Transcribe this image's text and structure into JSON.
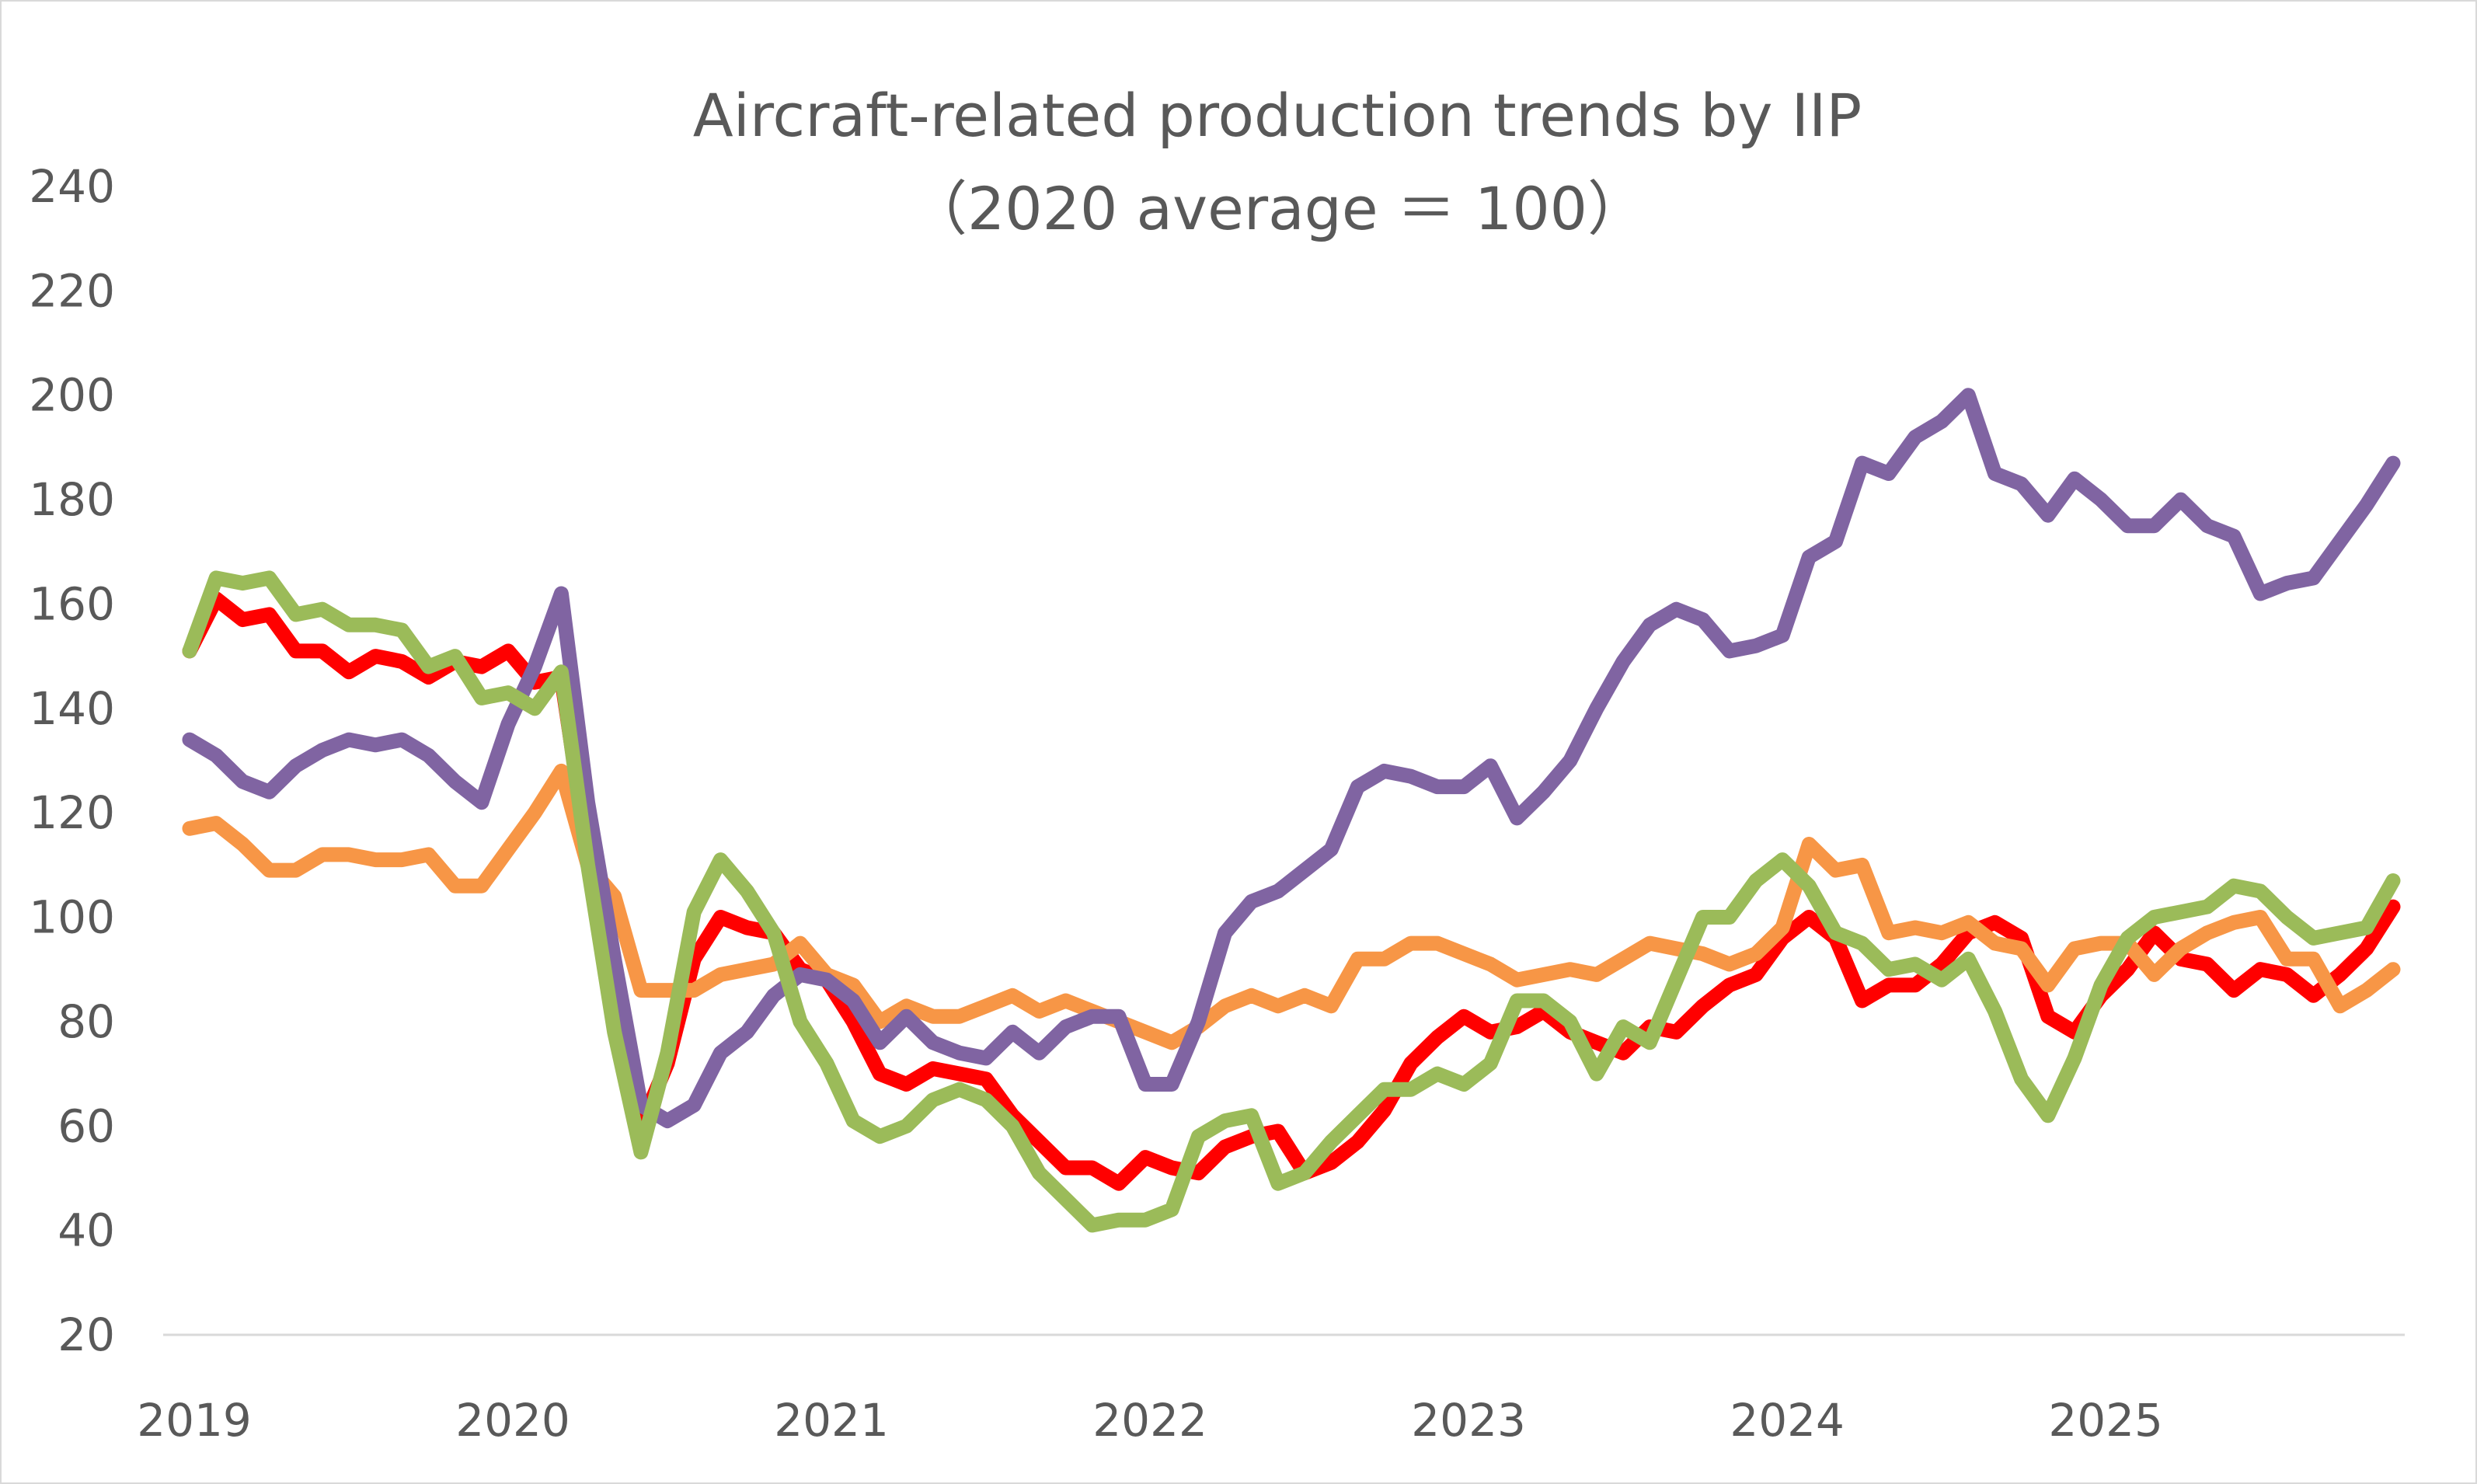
{
  "chart_data": {
    "type": "line",
    "title": "Aircraft-related production trends by IIP",
    "subtitle": "（2020 average ＝ 100）",
    "xlabel": "",
    "ylabel": "",
    "ylim": [
      20,
      240
    ],
    "y_ticks": [
      "20",
      "40",
      "60",
      "80",
      "100",
      "120",
      "140",
      "160",
      "180",
      "200",
      "220",
      "240"
    ],
    "x_tick_labels": [
      "2019",
      "2020",
      "2021",
      "2022",
      "2023",
      "2024",
      "2025"
    ],
    "x_range": [
      "2019-01",
      "2025-12"
    ],
    "x_frequency": "monthly",
    "grid": false,
    "legend": "none",
    "series": [
      {
        "color": "#FF0000",
        "values": [
          151,
          161,
          157,
          158,
          151,
          151,
          147,
          150,
          149,
          146,
          149,
          148,
          151,
          145,
          146,
          112,
          80,
          60,
          72,
          92,
          100,
          98,
          97,
          90,
          88,
          80,
          70,
          68,
          71,
          70,
          69,
          62,
          57,
          52,
          52,
          49,
          54,
          52,
          51,
          56,
          58,
          59,
          51,
          53,
          57,
          63,
          72,
          77,
          81,
          78,
          79,
          82,
          78,
          76,
          74,
          79,
          78,
          83,
          87,
          89,
          96,
          100,
          96,
          84,
          87,
          87,
          91,
          97,
          99,
          96,
          81,
          78,
          85,
          90,
          97,
          92,
          91,
          86,
          90,
          89,
          85,
          89,
          94,
          102
        ]
      },
      {
        "color": "#F79646",
        "values": [
          117,
          118,
          114,
          109,
          109,
          112,
          112,
          111,
          111,
          112,
          106,
          106,
          113,
          120,
          128,
          110,
          104,
          86,
          86,
          86,
          89,
          90,
          91,
          95,
          89,
          87,
          80,
          83,
          81,
          81,
          83,
          85,
          82,
          84,
          82,
          80,
          78,
          76,
          79,
          83,
          85,
          83,
          85,
          83,
          92,
          92,
          95,
          95,
          93,
          91,
          88,
          89,
          90,
          89,
          92,
          95,
          94,
          93,
          91,
          93,
          98,
          114,
          109,
          110,
          97,
          98,
          97,
          99,
          95,
          94,
          87,
          94,
          95,
          95,
          89,
          94,
          97,
          99,
          100,
          92,
          92,
          83,
          86,
          90
        ]
      },
      {
        "color": "#8064A2",
        "values": [
          134,
          131,
          126,
          124,
          129,
          132,
          134,
          133,
          134,
          131,
          126,
          122,
          137,
          148,
          162,
          122,
          92,
          64,
          61,
          64,
          74,
          78,
          85,
          89,
          88,
          84,
          76,
          81,
          76,
          74,
          73,
          78,
          74,
          79,
          81,
          81,
          68,
          68,
          80,
          97,
          103,
          105,
          109,
          113,
          125,
          128,
          127,
          125,
          125,
          129,
          119,
          124,
          130,
          140,
          149,
          156,
          159,
          157,
          151,
          152,
          154,
          169,
          172,
          187,
          185,
          192,
          195,
          200,
          185,
          183,
          177,
          184,
          180,
          175,
          175,
          180,
          175,
          173,
          162,
          164,
          165,
          172,
          179,
          187
        ]
      },
      {
        "color": "#9BBB59",
        "values": [
          151,
          165,
          164,
          165,
          158,
          159,
          156,
          156,
          155,
          148,
          150,
          142,
          143,
          140,
          147,
          110,
          78,
          55,
          74,
          101,
          111,
          105,
          97,
          80,
          72,
          61,
          58,
          60,
          65,
          67,
          65,
          60,
          51,
          46,
          41,
          42,
          42,
          44,
          58,
          61,
          62,
          49,
          51,
          57,
          62,
          67,
          67,
          70,
          68,
          72,
          84,
          84,
          80,
          70,
          79,
          76,
          88,
          100,
          100,
          107,
          111,
          106,
          97,
          95,
          90,
          91,
          88,
          92,
          82,
          69,
          62,
          73,
          87,
          96,
          100,
          101,
          102,
          106,
          105,
          100,
          96,
          97,
          98,
          107
        ]
      }
    ]
  }
}
